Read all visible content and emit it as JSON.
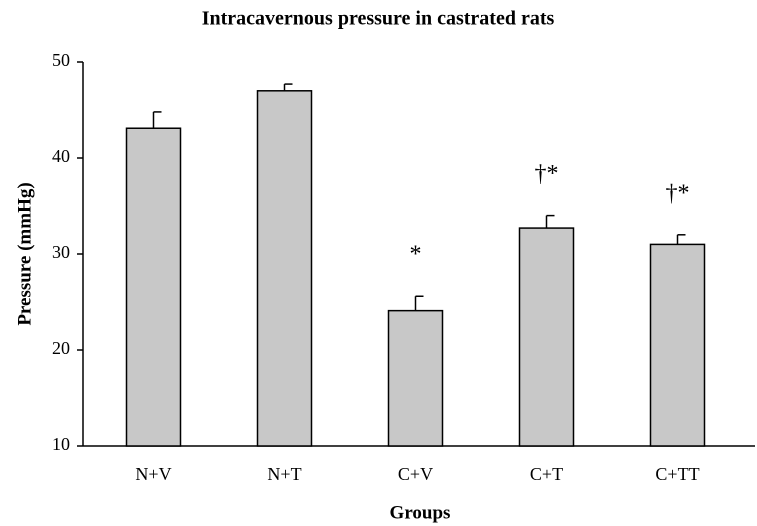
{
  "chart_data": {
    "type": "bar",
    "title": "Intracavernous pressure in castrated rats",
    "x_label": "Groups",
    "y_label": "Pressure (mmHg)",
    "categories": [
      "N+V",
      "N+T",
      "C+V",
      "C+T",
      "C+TT"
    ],
    "values": [
      43.1,
      47.0,
      24.1,
      32.7,
      31.0
    ],
    "errors": [
      1.7,
      0.7,
      1.5,
      1.3,
      1.0
    ],
    "annotations": [
      null,
      null,
      "*",
      "†*",
      "†*"
    ],
    "color": "#c8c8c8",
    "ylim": [
      10,
      50
    ],
    "yticks": [
      10,
      20,
      30,
      40,
      50
    ],
    "grid": false
  }
}
